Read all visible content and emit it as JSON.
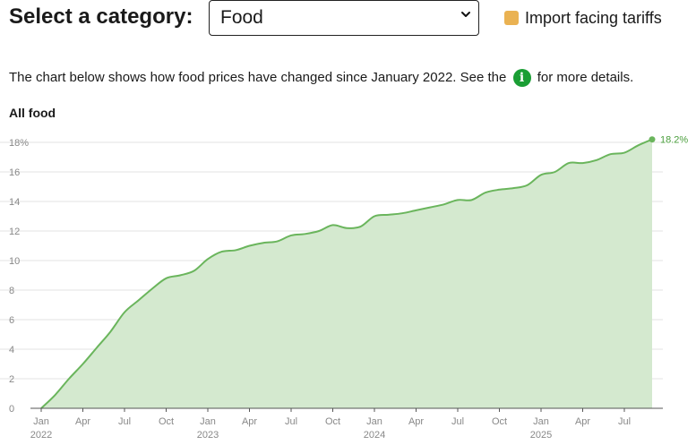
{
  "header": {
    "select_label": "Select a category:",
    "select_value": "Food",
    "legend_label": "Import facing tariffs",
    "legend_color": "#eab252"
  },
  "intro": {
    "text_before": "The chart below shows how food prices have changed since January 2022. See the",
    "info_icon": "info-icon",
    "info_glyph": "i",
    "text_after": "for more details."
  },
  "colors": {
    "line": "#6ab55c",
    "fill": "#d4e9cf",
    "grid": "#e3e3e3",
    "axis": "#555555",
    "info": "#1a9e34"
  },
  "chart_data": {
    "type": "area",
    "title": "All food",
    "xlabel": "",
    "ylabel": "",
    "ylim": [
      0,
      18
    ],
    "yticks": [
      "0",
      "2",
      "4",
      "6",
      "8",
      "10",
      "12",
      "14",
      "16",
      "18%"
    ],
    "ytick_values": [
      0,
      2,
      4,
      6,
      8,
      10,
      12,
      14,
      16,
      18
    ],
    "xticks": [
      {
        "month": "2022-01",
        "label": "Jan",
        "year": "2022"
      },
      {
        "month": "2022-04",
        "label": "Apr",
        "year": ""
      },
      {
        "month": "2022-07",
        "label": "Jul",
        "year": ""
      },
      {
        "month": "2022-10",
        "label": "Oct",
        "year": ""
      },
      {
        "month": "2023-01",
        "label": "Jan",
        "year": "2023"
      },
      {
        "month": "2023-04",
        "label": "Apr",
        "year": ""
      },
      {
        "month": "2023-07",
        "label": "Jul",
        "year": ""
      },
      {
        "month": "2023-10",
        "label": "Oct",
        "year": ""
      },
      {
        "month": "2024-01",
        "label": "Jan",
        "year": "2024"
      },
      {
        "month": "2024-04",
        "label": "Apr",
        "year": ""
      },
      {
        "month": "2024-07",
        "label": "Jul",
        "year": ""
      },
      {
        "month": "2024-10",
        "label": "Oct",
        "year": ""
      },
      {
        "month": "2025-01",
        "label": "Jan",
        "year": "2025"
      },
      {
        "month": "2025-04",
        "label": "Apr",
        "year": ""
      },
      {
        "month": "2025-07",
        "label": "Jul",
        "year": ""
      }
    ],
    "grid": true,
    "end_label": "18.2%",
    "series": [
      {
        "x": [
          "2022-01",
          "2022-02",
          "2022-03",
          "2022-04",
          "2022-05",
          "2022-06",
          "2022-07",
          "2022-08",
          "2022-09",
          "2022-10",
          "2022-11",
          "2022-12",
          "2023-01",
          "2023-02",
          "2023-03",
          "2023-04",
          "2023-05",
          "2023-06",
          "2023-07",
          "2023-08",
          "2023-09",
          "2023-10",
          "2023-11",
          "2023-12",
          "2024-01",
          "2024-02",
          "2024-03",
          "2024-04",
          "2024-05",
          "2024-06",
          "2024-07",
          "2024-08",
          "2024-09",
          "2024-10",
          "2024-11",
          "2024-12",
          "2025-01",
          "2025-02",
          "2025-03",
          "2025-04",
          "2025-05",
          "2025-06",
          "2025-07",
          "2025-08",
          "2025-09"
        ],
        "values": [
          0,
          0.9,
          2.0,
          3.0,
          4.1,
          5.2,
          6.5,
          7.3,
          8.1,
          8.8,
          9.0,
          9.3,
          10.1,
          10.6,
          10.7,
          11.0,
          11.2,
          11.3,
          11.7,
          11.8,
          12.0,
          12.4,
          12.2,
          12.3,
          13.0,
          13.1,
          13.2,
          13.4,
          13.6,
          13.8,
          14.1,
          14.1,
          14.6,
          14.8,
          14.9,
          15.1,
          15.8,
          16.0,
          16.6,
          16.6,
          16.8,
          17.2,
          17.3,
          17.8,
          18.2
        ]
      }
    ]
  }
}
